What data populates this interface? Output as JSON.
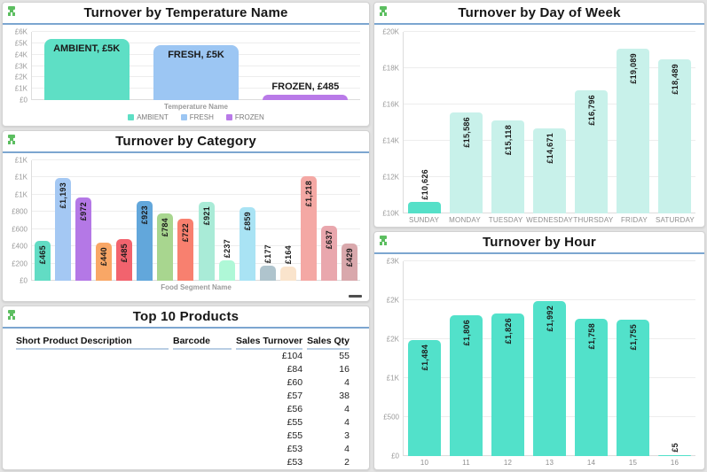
{
  "colors": {
    "header_underline": "#7ca6d0",
    "icon_green": "#5cbe60",
    "teal": "#52e1ca",
    "mint": "#c8f1ea",
    "panel_bg": "#ffffff"
  },
  "panels": {
    "temperature": {
      "title": "Turnover by Temperature Name"
    },
    "category": {
      "title": "Turnover by Category"
    },
    "day_of_week": {
      "title": "Turnover by Day of Week"
    },
    "hour": {
      "title": "Turnover by Hour"
    },
    "products": {
      "title": "Top 10 Products",
      "columns": [
        "Short Product Description",
        "Barcode",
        "Sales Turnover",
        "Sales Qty"
      ],
      "rows": [
        [
          "",
          "",
          "£104",
          "55"
        ],
        [
          "",
          "",
          "£84",
          "16"
        ],
        [
          "",
          "",
          "£60",
          "4"
        ],
        [
          "",
          "",
          "£57",
          "38"
        ],
        [
          "",
          "",
          "£56",
          "4"
        ],
        [
          "",
          "",
          "£55",
          "4"
        ],
        [
          "",
          "",
          "£55",
          "3"
        ],
        [
          "",
          "",
          "£53",
          "4"
        ],
        [
          "",
          "",
          "£53",
          "2"
        ],
        [
          "",
          "",
          "£52",
          "2"
        ]
      ]
    }
  },
  "chart_data": [
    {
      "type": "bar",
      "title": "Turnover by Temperature Name",
      "categories": [
        "AMBIENT",
        "FRESH",
        "FROZEN"
      ],
      "values": [
        5400,
        4800,
        485
      ],
      "data_labels": [
        "AMBIENT, £5K",
        "FRESH, £5K",
        "FROZEN, £485"
      ],
      "bar_colors": [
        "#5edfc5",
        "#9cc6f3",
        "#b97ae8"
      ],
      "ymin": 0,
      "ymax": 6000,
      "yticks": [
        {
          "value": 0,
          "label": "£0"
        },
        {
          "value": 1000,
          "label": "£1K"
        },
        {
          "value": 2000,
          "label": "£2K"
        },
        {
          "value": 3000,
          "label": "£3K"
        },
        {
          "value": 4000,
          "label": "£4K"
        },
        {
          "value": 5000,
          "label": "£5K"
        },
        {
          "value": 6000,
          "label": "£6K"
        }
      ],
      "xlabel": "Temperature Name",
      "legend": [
        {
          "label": "AMBIENT",
          "color": "#5edfc5"
        },
        {
          "label": "FRESH",
          "color": "#9cc6f3"
        },
        {
          "label": "FROZEN",
          "color": "#b97ae8"
        }
      ],
      "label_orientation": "horizontal",
      "show_category_axis": false,
      "bar_width_pct": 78,
      "bar_radius": 8,
      "inside_threshold": 0.15
    },
    {
      "type": "bar",
      "title": "Turnover by Category",
      "values": [
        465,
        1193,
        972,
        440,
        485,
        923,
        784,
        722,
        921,
        237,
        859,
        177,
        164,
        1218,
        637,
        429
      ],
      "data_labels": [
        "£465",
        "£1,193",
        "£972",
        "£440",
        "£485",
        "£923",
        "£784",
        "£722",
        "£921",
        "£237",
        "£859",
        "£177",
        "£164",
        "£1,218",
        "£637",
        "£429"
      ],
      "bar_colors": [
        "#62dcc4",
        "#a4c8f3",
        "#b478e6",
        "#f9a766",
        "#f2636e",
        "#62a7db",
        "#a8d68f",
        "#f8806f",
        "#a9ebd7",
        "#aff8d7",
        "#a9e3f4",
        "#afc4cd",
        "#fae4cc",
        "#f4a8a4",
        "#e9a7ad",
        "#d9a8ac"
      ],
      "ymin": 0,
      "ymax": 1400,
      "yticks": [
        {
          "value": 0,
          "label": "£0"
        },
        {
          "value": 200,
          "label": "£200"
        },
        {
          "value": 400,
          "label": "£400"
        },
        {
          "value": 600,
          "label": "£600"
        },
        {
          "value": 800,
          "label": "£800"
        },
        {
          "value": 1000,
          "label": "£1K"
        },
        {
          "value": 1200,
          "label": "£1K"
        },
        {
          "value": 1400,
          "label": "£1K"
        }
      ],
      "xlabel": "Food Segment Name",
      "label_orientation": "vertical",
      "show_category_axis": false,
      "bar_width_pct": 78,
      "bar_radius": 5,
      "inside_threshold": 0.25
    },
    {
      "type": "bar",
      "title": "Turnover by Day of Week",
      "categories": [
        "SUNDAY",
        "MONDAY",
        "TUESDAY",
        "WEDNESDAY",
        "THURSDAY",
        "FRIDAY",
        "SATURDAY"
      ],
      "values": [
        10626,
        15586,
        15118,
        14671,
        16796,
        19089,
        18489
      ],
      "data_labels": [
        "£10,626",
        "£15,586",
        "£15,118",
        "£14,671",
        "£16,796",
        "£19,089",
        "£18,489"
      ],
      "bar_colors": [
        "#55e0c8",
        "#c8f1ea",
        "#c8f1ea",
        "#c8f1ea",
        "#c8f1ea",
        "#c8f1ea",
        "#c8f1ea"
      ],
      "ymin": 10000,
      "ymax": 20000,
      "yticks": [
        {
          "value": 10000,
          "label": "£10K"
        },
        {
          "value": 12000,
          "label": "£12K"
        },
        {
          "value": 14000,
          "label": "£14K"
        },
        {
          "value": 16000,
          "label": "£16K"
        },
        {
          "value": 18000,
          "label": "£18K"
        },
        {
          "value": 20000,
          "label": "£20K"
        }
      ],
      "label_orientation": "vertical",
      "show_category_axis": true,
      "bar_width_pct": 78,
      "bar_radius": 4,
      "inside_threshold": 0.25
    },
    {
      "type": "bar",
      "title": "Turnover by Hour",
      "categories": [
        "10",
        "11",
        "12",
        "13",
        "14",
        "15",
        "16"
      ],
      "values": [
        1484,
        1806,
        1826,
        1992,
        1758,
        1755,
        5
      ],
      "data_labels": [
        "£1,484",
        "£1,806",
        "£1,826",
        "£1,992",
        "£1,758",
        "£1,755",
        "£5"
      ],
      "bar_colors": [
        "#52e1ca",
        "#52e1ca",
        "#52e1ca",
        "#52e1ca",
        "#52e1ca",
        "#52e1ca",
        "#52e1ca"
      ],
      "ymin": 0,
      "ymax": 2500,
      "yticks": [
        {
          "value": 0,
          "label": "£0"
        },
        {
          "value": 500,
          "label": "£500"
        },
        {
          "value": 1000,
          "label": "£1K"
        },
        {
          "value": 1500,
          "label": "£2K"
        },
        {
          "value": 2000,
          "label": "£2K"
        },
        {
          "value": 2500,
          "label": "£3K"
        }
      ],
      "label_orientation": "vertical",
      "show_category_axis": true,
      "bar_width_pct": 80,
      "bar_radius": 5,
      "inside_threshold": 0.2
    }
  ]
}
